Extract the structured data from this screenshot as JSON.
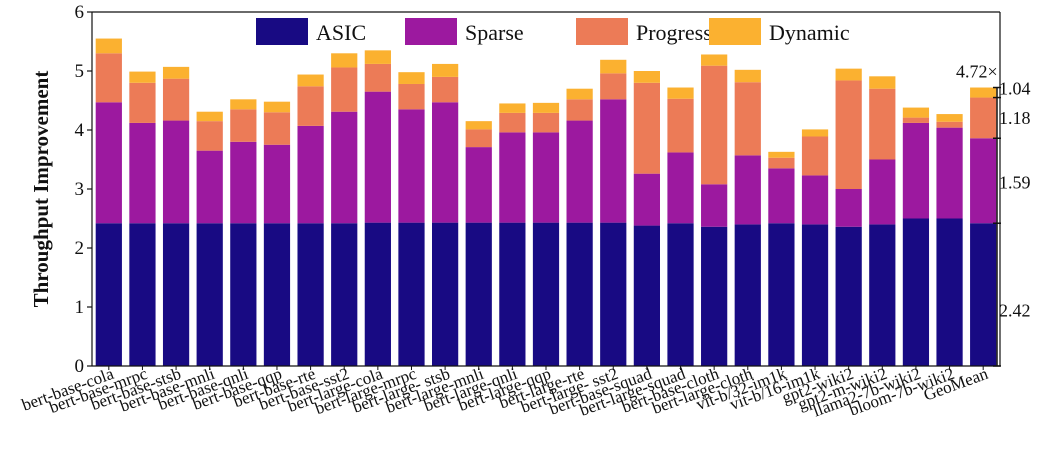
{
  "chart_data": {
    "type": "bar",
    "stacked": true,
    "ylabel": "Throughput Improvement",
    "xlabel": "",
    "ylim": [
      0,
      6
    ],
    "yticks": [
      "0",
      "1",
      "2",
      "3",
      "4",
      "5",
      "6"
    ],
    "grid": false,
    "legend_position": "top",
    "categories": [
      "bert-base-cola",
      "bert-base-mrpc",
      "bert-base-stsb",
      "bert-base-mnli",
      "bert-base-qnli",
      "bert-base-qqp",
      "bert-base-rte",
      "bert-base-sst2",
      "bert-large-cola",
      "bert-large-mrpc",
      "bert-large- stsb",
      "bert-large-mnli",
      "bert-large-qnli",
      "bert-large-qqp",
      "bert-large-rte",
      "bert-large- sst2",
      "bert-base-squad",
      "bert-large-squad",
      "bert-base-cloth",
      "bert-large-cloth",
      "vit-b/32-im1k",
      "vit-b/16-im1k",
      "gpt2-wiki2",
      "gpt2-m-wiki2",
      "llama2-7b-wiki2",
      "bloom-7b-wiki2",
      "GeoMean"
    ],
    "totals": [
      5.55,
      4.99,
      5.07,
      4.31,
      4.52,
      4.48,
      4.94,
      5.3,
      5.35,
      4.98,
      5.12,
      4.15,
      4.45,
      4.46,
      4.7,
      5.19,
      5.0,
      4.72,
      5.28,
      5.02,
      3.63,
      4.01,
      5.04,
      4.91,
      4.38,
      4.27,
      4.72
    ],
    "series": [
      {
        "name": "ASIC",
        "color": "#180a83",
        "values": [
          2.42,
          2.42,
          2.42,
          2.42,
          2.42,
          2.42,
          2.42,
          2.42,
          2.43,
          2.43,
          2.43,
          2.43,
          2.43,
          2.43,
          2.43,
          2.43,
          2.38,
          2.42,
          2.36,
          2.4,
          2.42,
          2.4,
          2.36,
          2.4,
          2.5,
          2.5,
          2.42
        ]
      },
      {
        "name": "Sparse",
        "color": "#9c199f",
        "values": [
          2.05,
          1.7,
          1.74,
          1.23,
          1.38,
          1.33,
          1.65,
          1.89,
          2.22,
          1.92,
          2.04,
          1.28,
          1.53,
          1.53,
          1.73,
          2.09,
          0.88,
          1.2,
          0.72,
          1.17,
          0.93,
          0.83,
          0.64,
          1.1,
          1.62,
          1.54,
          1.44
        ]
      },
      {
        "name": "Progressive",
        "color": "#ec7b57",
        "values": [
          0.83,
          0.68,
          0.71,
          0.5,
          0.55,
          0.55,
          0.67,
          0.75,
          0.47,
          0.43,
          0.43,
          0.3,
          0.33,
          0.33,
          0.36,
          0.44,
          1.54,
          0.91,
          2.01,
          1.24,
          0.18,
          0.66,
          1.84,
          1.2,
          0.09,
          0.1,
          0.69
        ]
      },
      {
        "name": "Dynamic",
        "color": "#fbb130",
        "values": [
          0.25,
          0.19,
          0.2,
          0.16,
          0.17,
          0.18,
          0.2,
          0.24,
          0.23,
          0.2,
          0.22,
          0.14,
          0.16,
          0.17,
          0.18,
          0.23,
          0.2,
          0.19,
          0.19,
          0.21,
          0.1,
          0.12,
          0.2,
          0.21,
          0.17,
          0.13,
          0.17
        ]
      }
    ],
    "annotations": {
      "total": "4.72×",
      "segments": [
        "2.42",
        "1.59",
        "1.18",
        "1.04"
      ]
    }
  }
}
